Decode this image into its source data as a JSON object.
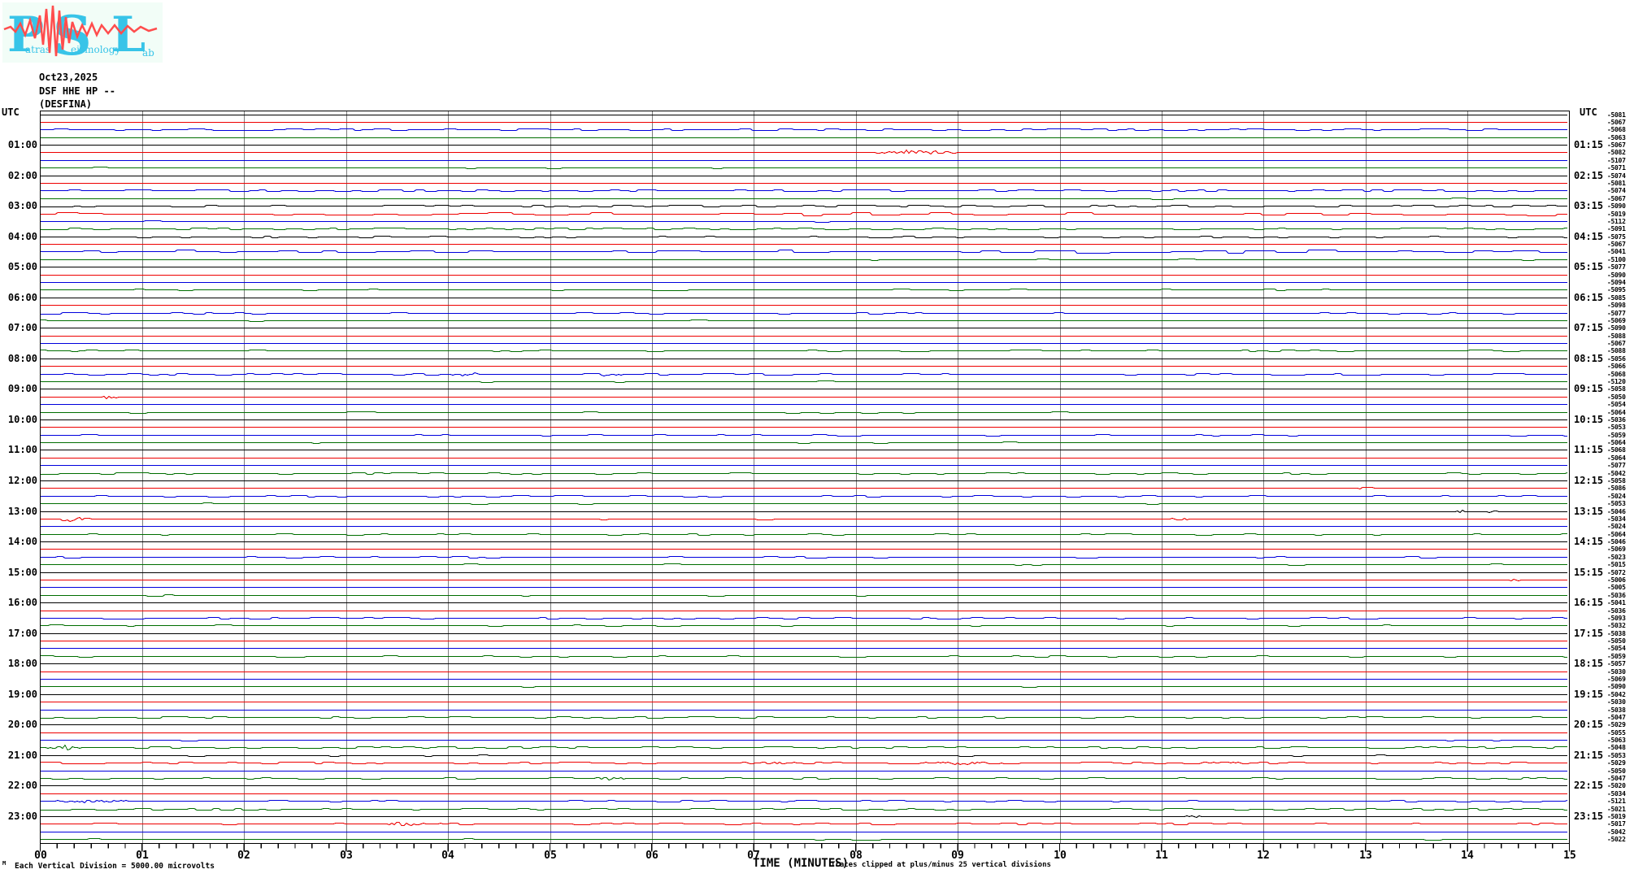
{
  "logo": {
    "letters": [
      "P",
      "S",
      "L"
    ],
    "words": [
      "atras",
      "eismology",
      "ab"
    ],
    "bg": "#f2fdf7"
  },
  "header": {
    "date": "Oct23,2025",
    "station": "DSF HHE HP --",
    "station_name": "(DESFINA)",
    "utc_left": "UTC",
    "utc_right": "UTC"
  },
  "footer": {
    "scale_note": "Each Vertical Division = 5000.00 microvolts",
    "xlabel": "TIME (MINUTES)",
    "clip_note": "Traces clipped at plus/minus 25 vertical divisions",
    "watermark": "M"
  },
  "left_labels": [
    "01:00",
    "02:00",
    "03:00",
    "04:00",
    "05:00",
    "06:00",
    "07:00",
    "08:00",
    "09:00",
    "10:00",
    "11:00",
    "12:00",
    "13:00",
    "14:00",
    "15:00",
    "16:00",
    "17:00",
    "18:00",
    "19:00",
    "20:00",
    "21:00",
    "22:00",
    "23:00"
  ],
  "right_labels": [
    "01:15",
    "02:15",
    "03:15",
    "04:15",
    "05:15",
    "06:15",
    "07:15",
    "08:15",
    "09:15",
    "10:15",
    "11:15",
    "12:15",
    "13:15",
    "14:15",
    "15:15",
    "16:15",
    "17:15",
    "18:15",
    "19:15",
    "20:15",
    "21:15",
    "22:15",
    "23:15"
  ],
  "x_labels": [
    "00",
    "01",
    "02",
    "03",
    "04",
    "05",
    "06",
    "07",
    "08",
    "09",
    "10",
    "11",
    "12",
    "13",
    "14",
    "15"
  ],
  "colors": {
    "black": "#000000",
    "red": "#ee0000",
    "blue": "#0000dd",
    "green": "#006e00",
    "grid": "#7d7d7d",
    "logo_cyan": "#38c4e8",
    "logo_red": "#ff4d4d"
  },
  "chart_data": {
    "type": "line",
    "title": "DSF HHE HP -- (DESFINA) helicorder, Oct23,2025",
    "xlabel": "TIME (MINUTES)",
    "x_range_minutes": [
      0,
      15
    ],
    "hours": 24,
    "traces_per_hour": 4,
    "trace_colors": [
      "black",
      "red",
      "blue",
      "green"
    ],
    "grid": "vertical gray line each minute",
    "offsets": [
      "-5081",
      "-5067",
      "-5068",
      "-5063",
      "-5067",
      "-5082",
      "-5107",
      "-5071",
      "-5074",
      "-5081",
      "-5074",
      "-5067",
      "-5090",
      "-5019",
      "-5112",
      "-5091",
      "-5075",
      "-5067",
      "-5041",
      "-5100",
      "-5077",
      "-5090",
      "-5094",
      "-5095",
      "-5085",
      "-5098",
      "-5077",
      "-5069",
      "-5090",
      "-5088",
      "-5067",
      "-5088",
      "-5056",
      "-5066",
      "-5068",
      "-5120",
      "-5058",
      "-5050",
      "-5054",
      "-5064",
      "-5036",
      "-5053",
      "-5059",
      "-5064",
      "-5068",
      "-5064",
      "-5077",
      "-5042",
      "-5058",
      "-5086",
      "-5024",
      "-5053",
      "-5046",
      "-5034",
      "-5024",
      "-5064",
      "-5046",
      "-5069",
      "-5023",
      "-5015",
      "-5072",
      "-5006",
      "-5005",
      "-5036",
      "-5041",
      "-5036",
      "-5093",
      "-5032",
      "-5038",
      "-5050",
      "-5054",
      "-5059",
      "-5057",
      "-5030",
      "-5069",
      "-5090",
      "-5042",
      "-5030",
      "-5038",
      "-5047",
      "-5029",
      "-5055",
      "-5063",
      "-5048",
      "-5053",
      "-5029",
      "-5050",
      "-5047",
      "-5020",
      "-5034",
      "-5121",
      "-5021",
      "-5019",
      "-5017",
      "-5042",
      "-5022"
    ],
    "noise": [
      0.3,
      0.25,
      1.0,
      0.35,
      0.3,
      0.3,
      0.35,
      0.4,
      0.3,
      0.25,
      1.0,
      0.4,
      0.8,
      1.4,
      0.4,
      1.0,
      0.5,
      0.3,
      1.3,
      0.4,
      0.3,
      0.3,
      0.3,
      0.45,
      0.3,
      0.25,
      0.5,
      0.4,
      0.3,
      0.3,
      0.3,
      0.6,
      0.3,
      0.3,
      0.7,
      0.4,
      0.3,
      0.3,
      0.3,
      0.45,
      0.3,
      0.35,
      0.5,
      0.4,
      0.3,
      0.3,
      0.3,
      0.7,
      0.3,
      0.3,
      0.6,
      0.4,
      0.35,
      0.4,
      0.3,
      0.6,
      0.3,
      0.3,
      0.5,
      0.4,
      0.3,
      0.3,
      0.35,
      0.4,
      0.3,
      0.3,
      0.7,
      0.45,
      0.3,
      0.3,
      0.3,
      0.5,
      0.3,
      0.3,
      0.35,
      0.4,
      0.3,
      0.3,
      0.3,
      0.6,
      0.35,
      0.3,
      0.4,
      0.9,
      0.4,
      0.9,
      0.35,
      0.8,
      0.3,
      0.3,
      0.6,
      0.8,
      0.3,
      0.6,
      0.3,
      0.4
    ],
    "events": [
      {
        "trace": 5,
        "min": 8.6,
        "amp": 3.0,
        "w": 0.5
      },
      {
        "trace": 34,
        "min": 4.2,
        "amp": 1.4,
        "w": 0.3
      },
      {
        "trace": 34,
        "min": 5.6,
        "amp": 1.2,
        "w": 0.2
      },
      {
        "trace": 37,
        "min": 0.65,
        "amp": 2.2,
        "w": 0.12
      },
      {
        "trace": 49,
        "min": 13.05,
        "amp": 1.8,
        "w": 0.12
      },
      {
        "trace": 52,
        "min": 13.95,
        "amp": 2.6,
        "w": 0.12
      },
      {
        "trace": 52,
        "min": 14.25,
        "amp": 2.0,
        "w": 0.08
      },
      {
        "trace": 53,
        "min": 0.35,
        "amp": 2.6,
        "w": 0.3
      },
      {
        "trace": 53,
        "min": 11.15,
        "amp": 1.8,
        "w": 0.15
      },
      {
        "trace": 61,
        "min": 14.45,
        "amp": 1.6,
        "w": 0.08
      },
      {
        "trace": 83,
        "min": 0.25,
        "amp": 3.0,
        "w": 0.2
      },
      {
        "trace": 85,
        "min": 7.2,
        "amp": 1.6,
        "w": 0.4
      },
      {
        "trace": 85,
        "min": 9.0,
        "amp": 1.6,
        "w": 0.5
      },
      {
        "trace": 85,
        "min": 11.5,
        "amp": 1.4,
        "w": 0.4
      },
      {
        "trace": 87,
        "min": 5.6,
        "amp": 2.4,
        "w": 0.2
      },
      {
        "trace": 90,
        "min": 0.5,
        "amp": 2.2,
        "w": 0.35
      },
      {
        "trace": 92,
        "min": 11.3,
        "amp": 1.6,
        "w": 0.1
      },
      {
        "trace": 93,
        "min": 3.6,
        "amp": 2.2,
        "w": 0.35
      }
    ]
  }
}
